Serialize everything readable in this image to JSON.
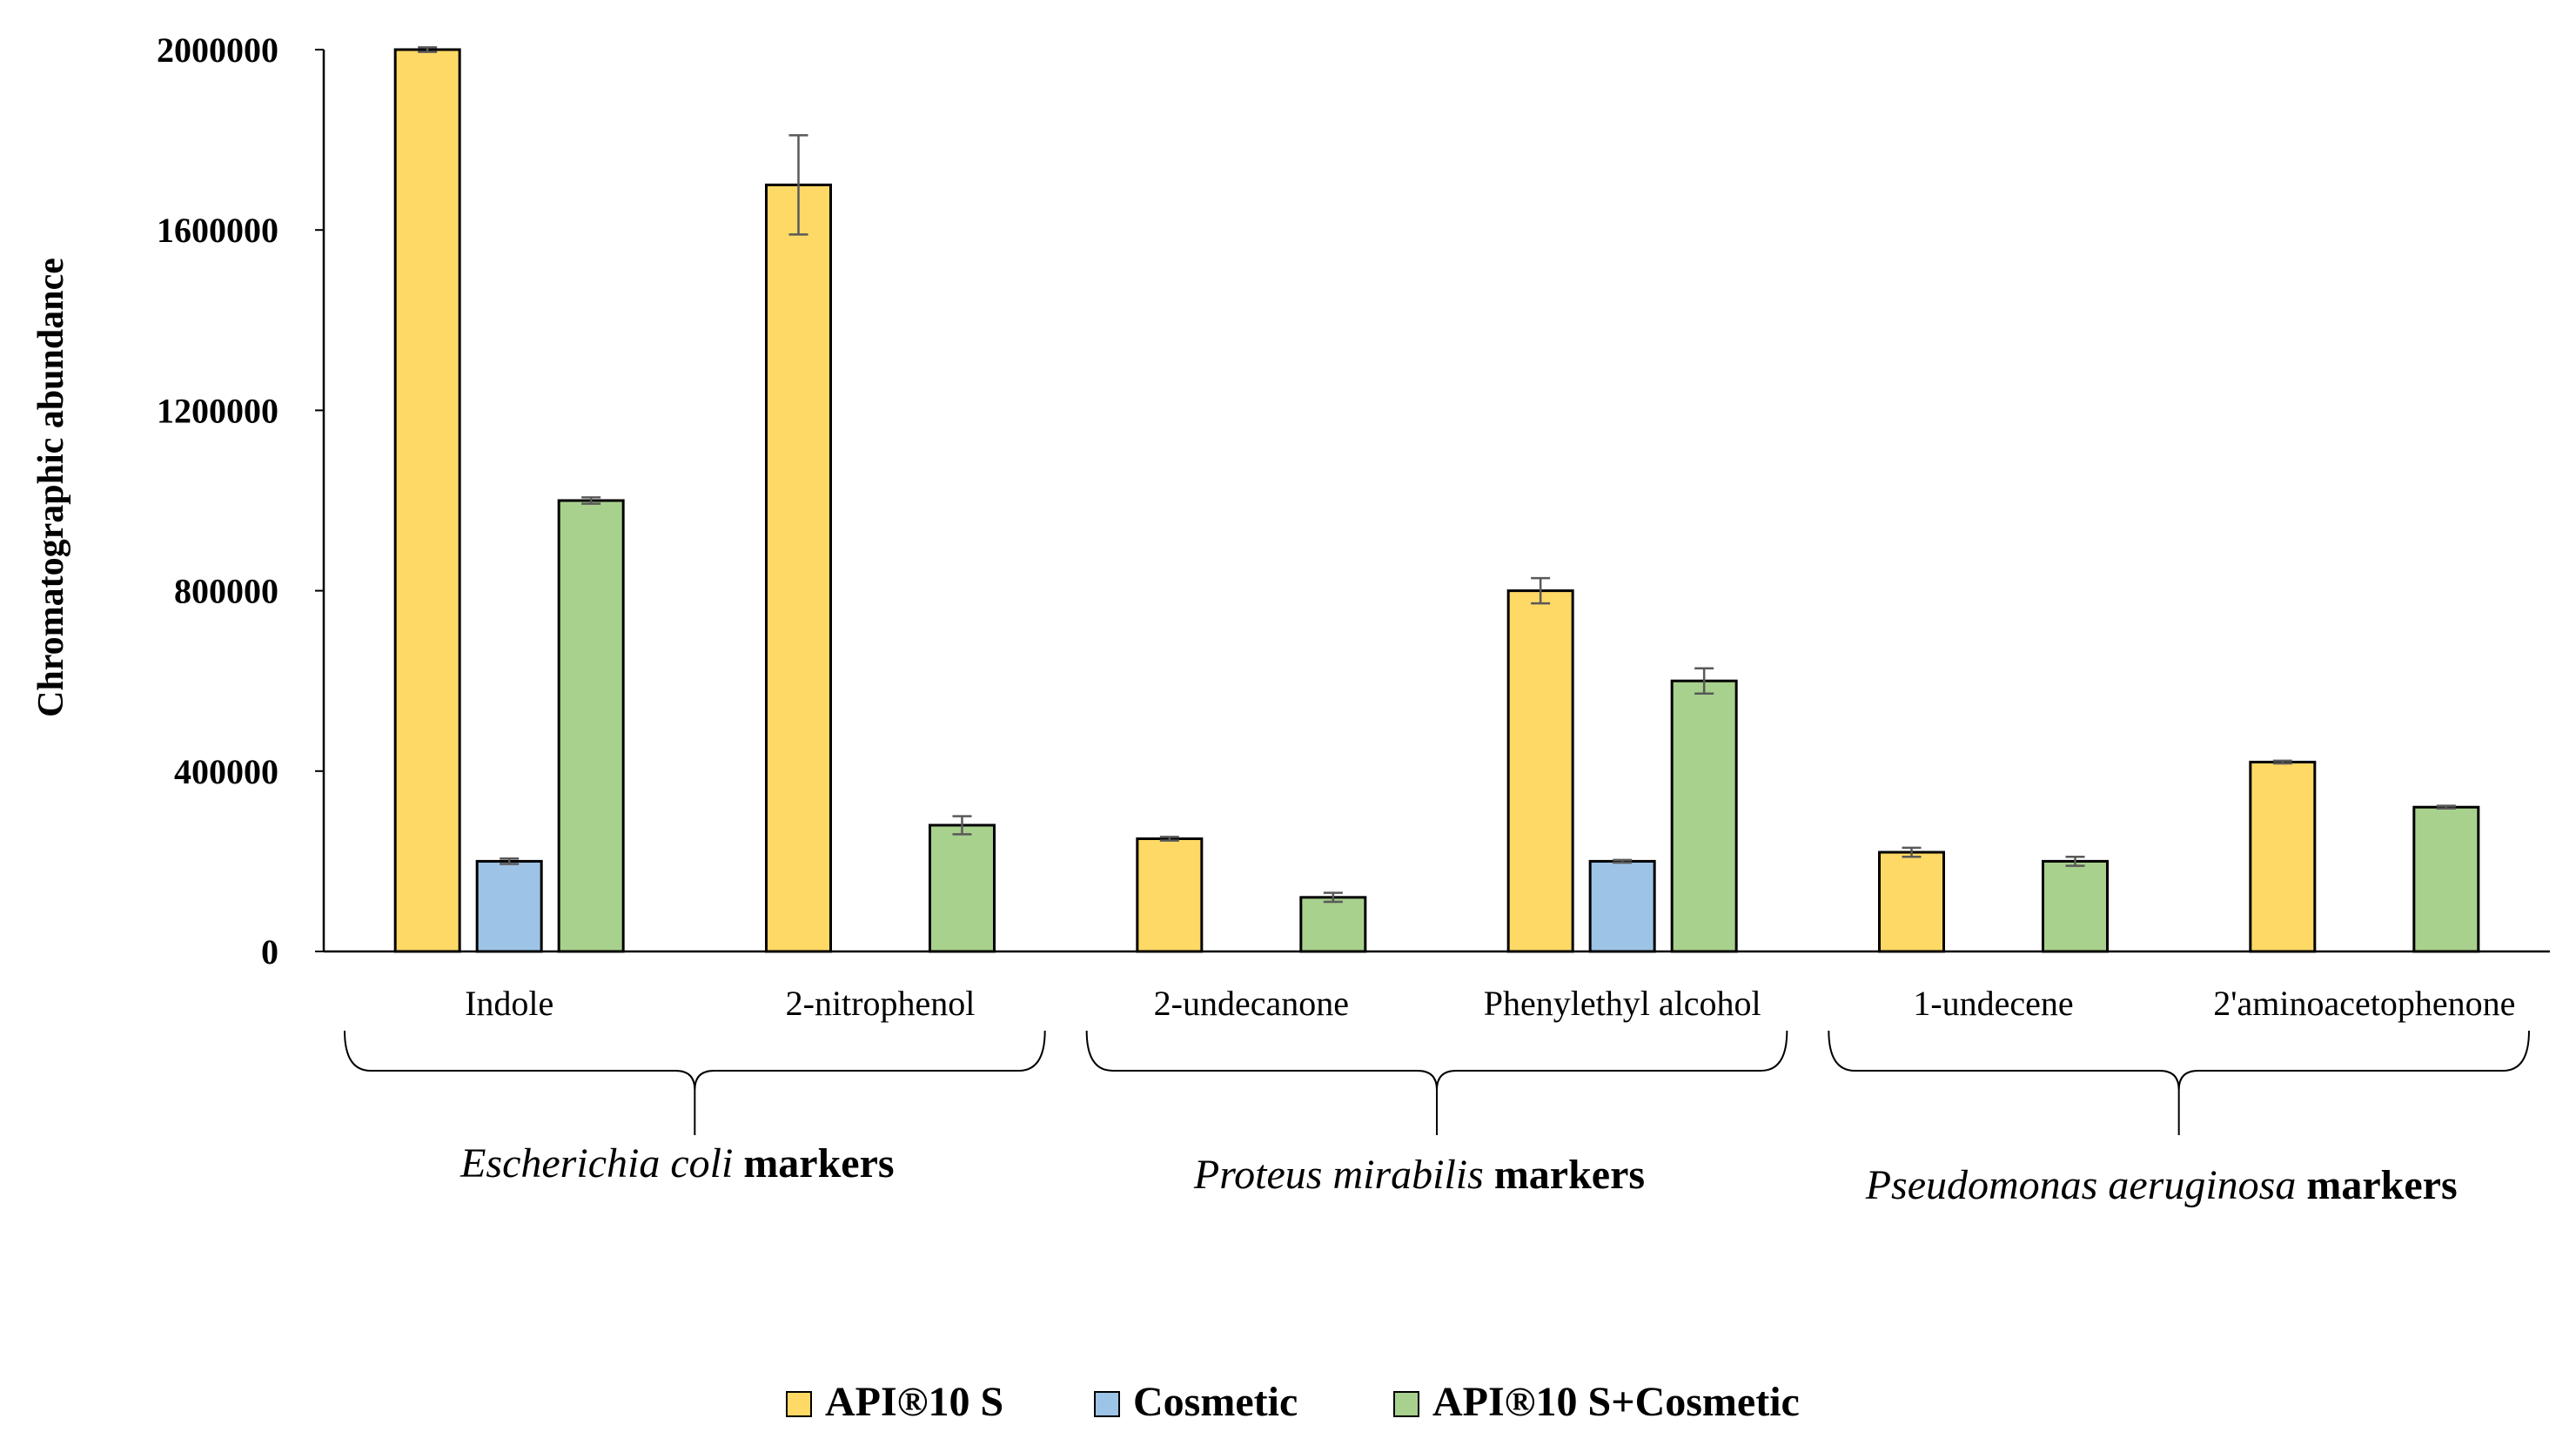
{
  "chart_data": {
    "type": "bar",
    "title": "",
    "xlabel": "",
    "ylabel": "Chromatographic abundance",
    "ylim": [
      0,
      2000000
    ],
    "yticks": [
      "0",
      "400000",
      "800000",
      "1200000",
      "1600000",
      "2000000"
    ],
    "grid": false,
    "legend_position": "bottom",
    "categories": [
      "Indole",
      "2-nitrophenol",
      "2-undecanone",
      "Phenylethyl alcohol",
      "1-undecene",
      "2'aminoacetophenone"
    ],
    "series": [
      {
        "name": "API®10 S",
        "color": "#FFD966",
        "values": [
          2000000,
          1700000,
          250000,
          800000,
          220000,
          420000
        ],
        "errors": [
          5000,
          110000,
          4000,
          28000,
          10000,
          3000
        ]
      },
      {
        "name": "Cosmetic",
        "color": "#9DC3E6",
        "values": [
          200000,
          null,
          null,
          200000,
          null,
          null
        ],
        "errors": [
          6000,
          null,
          null,
          3000,
          null,
          null
        ]
      },
      {
        "name": "API®10 S+Cosmetic",
        "color": "#A9D18E",
        "values": [
          1000000,
          280000,
          120000,
          600000,
          200000,
          320000
        ],
        "errors": [
          7000,
          20000,
          10000,
          28000,
          10000,
          3000
        ]
      }
    ],
    "groups": [
      {
        "italic": "Escherichia coli",
        "bold": "markers",
        "categories": [
          "Indole",
          "2-nitrophenol"
        ]
      },
      {
        "italic": "Proteus mirabilis",
        "bold": "markers",
        "categories": [
          "2-undecanone",
          "Phenylethyl alcohol"
        ]
      },
      {
        "italic": "Pseudomonas aeruginosa",
        "bold": "markers",
        "categories": [
          "1-undecene",
          "2'aminoacetophenone"
        ]
      }
    ]
  }
}
